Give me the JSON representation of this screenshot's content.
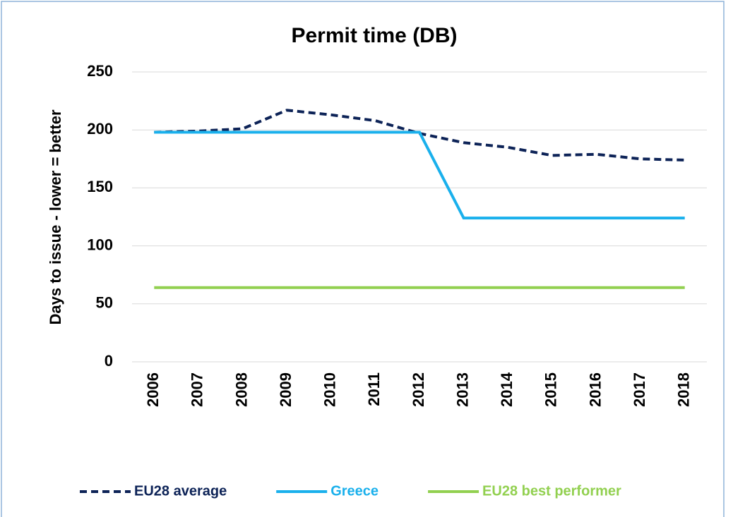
{
  "chart_data": {
    "type": "line",
    "title": "Permit time (DB)",
    "y_label": "Days to issue - lower = better",
    "categories": [
      "2006",
      "2007",
      "2008",
      "2009",
      "2010",
      "2011",
      "2012",
      "2013",
      "2014",
      "2015",
      "2016",
      "2017",
      "2018"
    ],
    "series": [
      {
        "name": "EU28 average",
        "color": "#0d2357",
        "dashed": true,
        "values": [
          198,
          199,
          201,
          217,
          213,
          208,
          197,
          189,
          185,
          178,
          179,
          175,
          174
        ]
      },
      {
        "name": "Greece",
        "color": "#1ab0ec",
        "values": [
          198,
          198,
          198,
          198,
          198,
          198,
          198,
          124,
          124,
          124,
          124,
          124,
          124
        ]
      },
      {
        "name": "EU28 best performer",
        "color": "#92d050",
        "values": [
          64,
          64,
          64,
          64,
          64,
          64,
          64,
          64,
          64,
          64,
          64,
          64,
          64
        ]
      }
    ],
    "ylim": [
      0,
      250
    ],
    "yticks": [
      0,
      50,
      100,
      150,
      200,
      250
    ],
    "grid": true,
    "legend": "bottom"
  }
}
